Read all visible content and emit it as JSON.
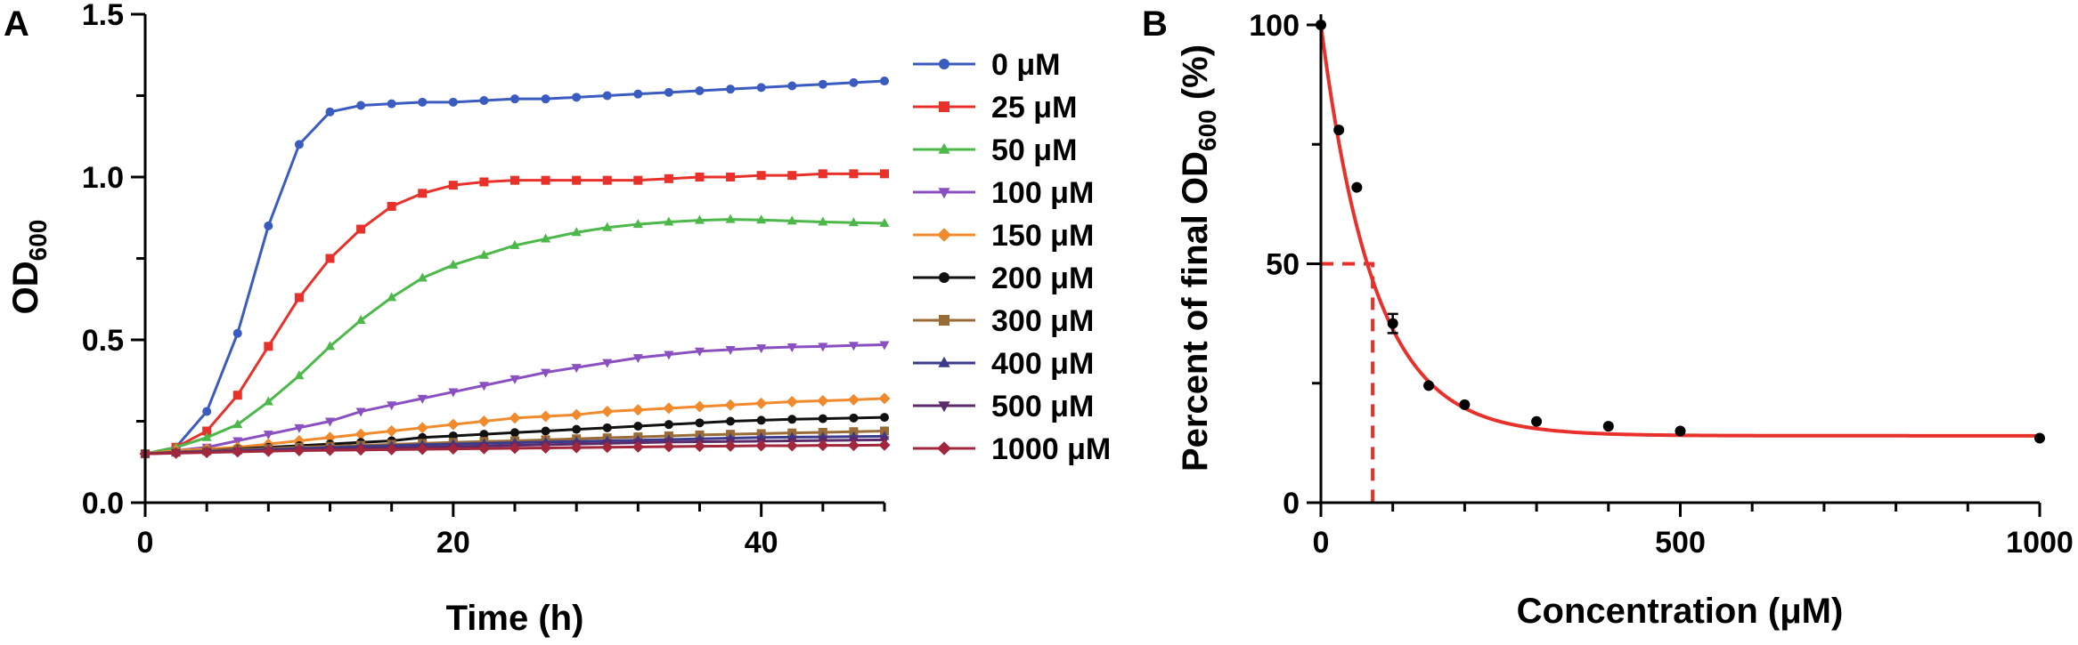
{
  "chart_data": [
    {
      "panel": "A",
      "type": "line",
      "xlabel": "Time  (h)",
      "ylabel_main": "OD",
      "ylabel_sub": "600",
      "xlim": [
        0,
        48
      ],
      "ylim": [
        0,
        1.5
      ],
      "xticks": [
        0,
        20,
        40
      ],
      "xtick_labels": [
        "0",
        "20",
        "40"
      ],
      "yticks": [
        0,
        0.5,
        1.0,
        1.5
      ],
      "ytick_labels": [
        "0.0",
        "0.5",
        "1.0",
        "1.5"
      ],
      "legend_position": "right",
      "x": [
        0,
        2,
        4,
        6,
        8,
        10,
        12,
        14,
        16,
        18,
        20,
        22,
        24,
        26,
        28,
        30,
        32,
        34,
        36,
        38,
        40,
        42,
        44,
        46,
        48
      ],
      "series": [
        {
          "name": "0 μM",
          "color": "#3a5bbf",
          "marker": "circle",
          "values": [
            0.15,
            0.17,
            0.28,
            0.52,
            0.85,
            1.1,
            1.2,
            1.22,
            1.225,
            1.23,
            1.23,
            1.235,
            1.24,
            1.24,
            1.245,
            1.25,
            1.255,
            1.26,
            1.265,
            1.27,
            1.275,
            1.28,
            1.285,
            1.29,
            1.295
          ]
        },
        {
          "name": "25 μM",
          "color": "#e8312a",
          "marker": "square",
          "values": [
            0.15,
            0.17,
            0.22,
            0.33,
            0.48,
            0.63,
            0.75,
            0.84,
            0.91,
            0.95,
            0.975,
            0.985,
            0.99,
            0.99,
            0.99,
            0.99,
            0.99,
            0.995,
            1.0,
            1.0,
            1.005,
            1.005,
            1.01,
            1.01,
            1.01
          ]
        },
        {
          "name": "50 μM",
          "color": "#4cb84a",
          "marker": "triangle-up",
          "values": [
            0.15,
            0.17,
            0.2,
            0.24,
            0.31,
            0.39,
            0.48,
            0.56,
            0.63,
            0.69,
            0.73,
            0.76,
            0.79,
            0.81,
            0.83,
            0.845,
            0.855,
            0.862,
            0.867,
            0.87,
            0.868,
            0.865,
            0.862,
            0.86,
            0.858
          ]
        },
        {
          "name": "100 μM",
          "color": "#8a4fc0",
          "marker": "triangle-down",
          "values": [
            0.15,
            0.16,
            0.17,
            0.19,
            0.21,
            0.23,
            0.25,
            0.28,
            0.3,
            0.32,
            0.34,
            0.36,
            0.38,
            0.4,
            0.415,
            0.43,
            0.445,
            0.455,
            0.465,
            0.47,
            0.475,
            0.478,
            0.48,
            0.483,
            0.485
          ]
        },
        {
          "name": "150 μM",
          "color": "#f08a2c",
          "marker": "diamond",
          "values": [
            0.15,
            0.16,
            0.165,
            0.17,
            0.18,
            0.19,
            0.2,
            0.21,
            0.22,
            0.23,
            0.24,
            0.25,
            0.26,
            0.265,
            0.27,
            0.28,
            0.285,
            0.29,
            0.295,
            0.3,
            0.305,
            0.31,
            0.313,
            0.316,
            0.32
          ]
        },
        {
          "name": "200 μM",
          "color": "#111111",
          "marker": "circle",
          "values": [
            0.15,
            0.155,
            0.16,
            0.165,
            0.17,
            0.175,
            0.18,
            0.185,
            0.19,
            0.2,
            0.205,
            0.21,
            0.215,
            0.22,
            0.225,
            0.23,
            0.235,
            0.24,
            0.245,
            0.25,
            0.253,
            0.256,
            0.258,
            0.26,
            0.262
          ]
        },
        {
          "name": "300 μM",
          "color": "#9a6b36",
          "marker": "square",
          "values": [
            0.15,
            0.155,
            0.16,
            0.163,
            0.166,
            0.17,
            0.173,
            0.176,
            0.179,
            0.182,
            0.185,
            0.188,
            0.19,
            0.193,
            0.196,
            0.199,
            0.202,
            0.205,
            0.208,
            0.21,
            0.212,
            0.214,
            0.216,
            0.218,
            0.22
          ]
        },
        {
          "name": "400 μM",
          "color": "#3b3b8e",
          "marker": "triangle-up",
          "values": [
            0.15,
            0.154,
            0.157,
            0.16,
            0.163,
            0.166,
            0.169,
            0.172,
            0.175,
            0.178,
            0.18,
            0.182,
            0.184,
            0.186,
            0.188,
            0.19,
            0.192,
            0.194,
            0.196,
            0.198,
            0.2,
            0.201,
            0.202,
            0.203,
            0.204
          ]
        },
        {
          "name": "500 μM",
          "color": "#5a2a6a",
          "marker": "triangle-down",
          "values": [
            0.15,
            0.153,
            0.156,
            0.158,
            0.16,
            0.162,
            0.164,
            0.166,
            0.168,
            0.17,
            0.172,
            0.174,
            0.176,
            0.178,
            0.18,
            0.182,
            0.184,
            0.186,
            0.187,
            0.188,
            0.189,
            0.19,
            0.191,
            0.192,
            0.193
          ]
        },
        {
          "name": "1000 μM",
          "color": "#a3273c",
          "marker": "diamond",
          "values": [
            0.15,
            0.152,
            0.154,
            0.156,
            0.158,
            0.16,
            0.161,
            0.162,
            0.163,
            0.164,
            0.165,
            0.166,
            0.167,
            0.168,
            0.169,
            0.17,
            0.171,
            0.172,
            0.173,
            0.174,
            0.175,
            0.175,
            0.176,
            0.176,
            0.177
          ]
        }
      ]
    },
    {
      "panel": "B",
      "type": "scatter",
      "xlabel": "Concentration  (μM)",
      "ylabel_main": "Percent of final OD",
      "ylabel_sub": "600",
      "ylabel_suffix": " (%)",
      "xlim": [
        0,
        1000
      ],
      "ylim": [
        0,
        100
      ],
      "xticks": [
        0,
        500,
        1000
      ],
      "xtick_labels": [
        "0",
        "500",
        "1000"
      ],
      "yticks": [
        0,
        50,
        100
      ],
      "ytick_labels": [
        "0",
        "50",
        "100"
      ],
      "points": {
        "x": [
          0,
          25,
          50,
          100,
          150,
          200,
          300,
          400,
          500,
          1000
        ],
        "y": [
          100,
          78,
          66,
          37.5,
          24.5,
          20.5,
          17,
          16,
          15,
          13.5
        ],
        "yerr": [
          0,
          0,
          0,
          2,
          0,
          0,
          0,
          0,
          0,
          0
        ],
        "color": "#000000"
      },
      "fit": {
        "model": "exponential decay",
        "plateau": 14,
        "top": 100,
        "k": 0.0135,
        "color": "#e8312a"
      },
      "half_max": {
        "x": 72,
        "y": 50,
        "color": "#e8312a"
      }
    }
  ]
}
